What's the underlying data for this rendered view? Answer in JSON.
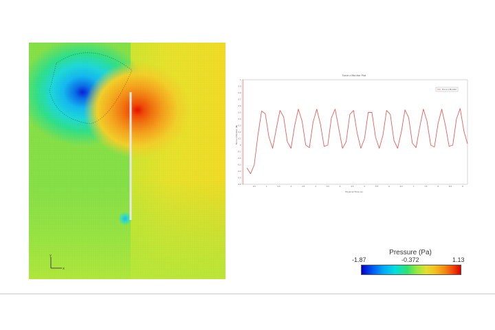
{
  "contour": {
    "description_colors": {
      "low": "#0000c8",
      "mid": "#7fe040",
      "high": "#e81a00"
    }
  },
  "plot": {
    "title": "Force z Monitor Plot",
    "ylabel": "Force z Monitor (N)",
    "xlabel": "Physical Time (s)",
    "legend_label": "Force z Monitor",
    "line_color": "#e06060",
    "chart_data": {
      "type": "line",
      "title": "Force z Monitor Plot",
      "xlabel": "Physical Time (s)",
      "ylabel": "Force z Monitor (N)",
      "xlim": [
        0,
        9.2
      ],
      "ylim": [
        -0.6,
        1.0
      ],
      "xticks": [
        "0.5",
        "1",
        "1.5",
        "2",
        "2.5",
        "3",
        "3.5",
        "4",
        "4.5",
        "5",
        "5.5",
        "6",
        "6.5",
        "7",
        "7.5",
        "8",
        "8.5",
        "9"
      ],
      "yticks": [
        "-0.6",
        "-0.5",
        "-0.4",
        "-0.3",
        "-0.2",
        "-0.1",
        "0",
        "0.1",
        "0.2",
        "0.3",
        "0.4",
        "0.5",
        "0.6",
        "0.7",
        "0.8",
        "0.9",
        "1"
      ],
      "grid": true,
      "legend_position": "top-right",
      "series": [
        {
          "name": "Force z Monitor",
          "x": [
            0.2,
            0.35,
            0.5,
            0.65,
            0.8,
            0.95,
            1.1,
            1.25,
            1.4,
            1.55,
            1.7,
            1.85,
            2.0,
            2.15,
            2.3,
            2.45,
            2.6,
            2.75,
            2.9,
            3.05,
            3.2,
            3.35,
            3.5,
            3.65,
            3.8,
            3.95,
            4.1,
            4.25,
            4.4,
            4.55,
            4.7,
            4.85,
            5.0,
            5.15,
            5.3,
            5.45,
            5.6,
            5.75,
            5.9,
            6.05,
            6.2,
            6.35,
            6.5,
            6.65,
            6.8,
            6.95,
            7.1,
            7.25,
            7.4,
            7.55,
            7.7,
            7.85,
            8.0,
            8.15,
            8.3,
            8.45,
            8.6,
            8.75,
            8.9,
            9.05,
            9.2
          ],
          "y": [
            -0.35,
            -0.44,
            -0.3,
            0.15,
            0.52,
            0.48,
            0.12,
            -0.05,
            0.25,
            0.53,
            0.43,
            0.05,
            -0.05,
            0.3,
            0.55,
            0.37,
            0.0,
            -0.04,
            0.35,
            0.55,
            0.32,
            -0.02,
            0.0,
            0.42,
            0.55,
            0.25,
            -0.05,
            0.05,
            0.47,
            0.53,
            0.18,
            -0.05,
            0.1,
            0.5,
            0.5,
            0.12,
            -0.05,
            0.15,
            0.53,
            0.47,
            0.07,
            -0.05,
            0.2,
            0.54,
            0.42,
            0.03,
            -0.04,
            0.27,
            0.55,
            0.36,
            0.0,
            -0.03,
            0.33,
            0.55,
            0.3,
            -0.02,
            0.0,
            0.4,
            0.56,
            0.22,
            0.02
          ]
        }
      ]
    }
  },
  "colorbar": {
    "title": "Pressure (Pa)",
    "min_label": "-1.87",
    "mid_label": "-0.372",
    "max_label": "1.13"
  }
}
